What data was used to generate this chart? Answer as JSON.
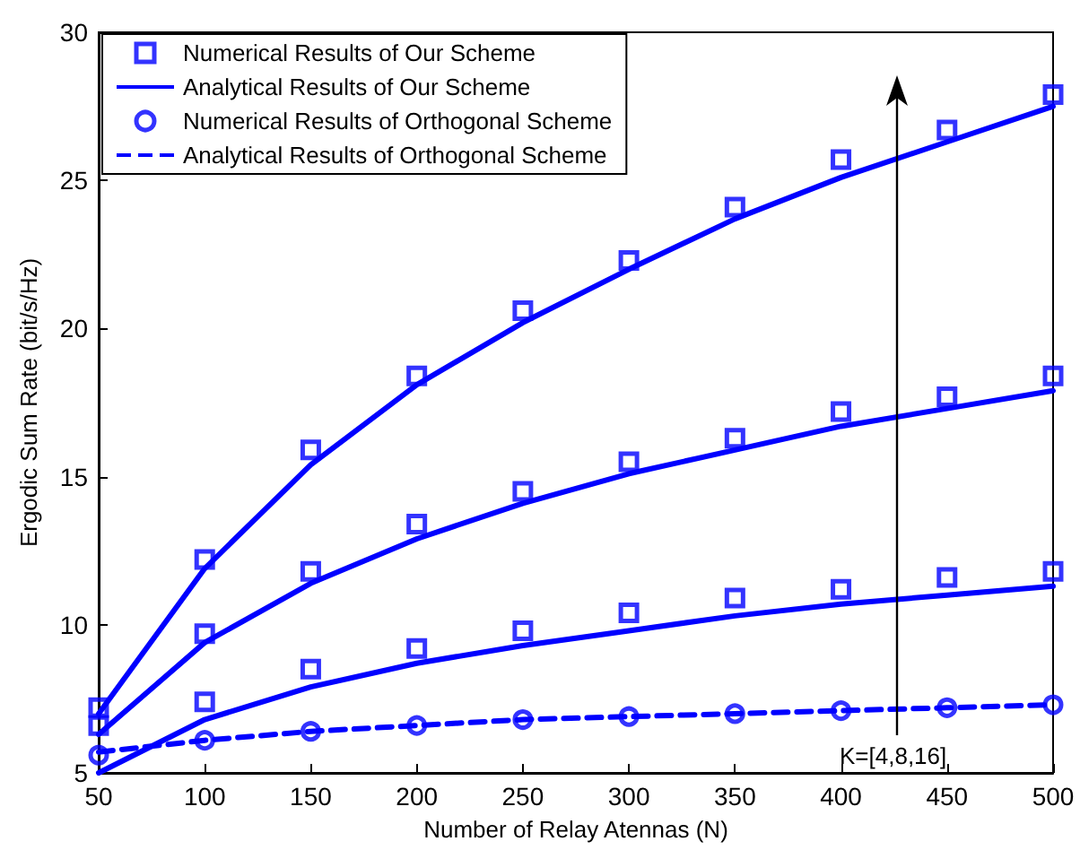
{
  "chart_data": {
    "type": "line",
    "xlabel": "Number of Relay Atennas (N)",
    "ylabel": "Ergodic Sum Rate (bit/s/Hz)",
    "x": [
      50,
      100,
      150,
      200,
      250,
      300,
      350,
      400,
      450,
      500
    ],
    "xlim": [
      50,
      500
    ],
    "xticks": [
      50,
      100,
      150,
      200,
      250,
      300,
      350,
      400,
      450,
      500
    ],
    "ylim": [
      5,
      30
    ],
    "yticks": [
      5,
      10,
      15,
      20,
      25,
      30
    ],
    "grid": false,
    "legend": "top left",
    "annotations": [
      "K=[4,8,16]"
    ],
    "series": [
      {
        "name": "Numerical Results of Our Scheme",
        "type": "scatter",
        "marker": "square",
        "color": "#0000ff",
        "values": [
          7.2,
          12.2,
          15.9,
          18.4,
          20.6,
          22.3,
          24.1,
          25.7,
          26.7,
          27.9
        ]
      },
      {
        "name": "Analytical Results of Our Scheme",
        "marker": "none",
        "line_style": "solid",
        "color": "#0000ff",
        "values": [
          7.0,
          11.9,
          15.4,
          18.1,
          20.2,
          22.0,
          23.7,
          25.1,
          26.3,
          27.5
        ]
      },
      {
        "type": "scatter",
        "marker": "square",
        "color": "#0000ff",
        "values": [
          6.6,
          9.7,
          11.8,
          13.4,
          14.5,
          15.5,
          16.3,
          17.2,
          17.7,
          18.4
        ]
      },
      {
        "marker": "none",
        "line_style": "solid",
        "color": "#0000ff",
        "values": [
          6.3,
          9.4,
          11.4,
          12.9,
          14.1,
          15.1,
          15.9,
          16.7,
          17.3,
          17.9
        ]
      },
      {
        "type": "scatter",
        "marker": "square",
        "color": "#0000ff",
        "values": [
          null,
          7.4,
          8.5,
          9.2,
          9.8,
          10.4,
          10.9,
          11.2,
          11.6,
          11.8
        ]
      },
      {
        "marker": "none",
        "line_style": "solid",
        "color": "#0000ff",
        "values": [
          5.0,
          6.8,
          7.9,
          8.7,
          9.3,
          9.8,
          10.3,
          10.7,
          11.0,
          11.3
        ]
      },
      {
        "name": "Numerical Results of Orthogonal Scheme",
        "type": "scatter",
        "marker": "circle",
        "color": "#0000ff",
        "values": [
          5.6,
          6.1,
          6.4,
          6.6,
          6.8,
          6.9,
          7.0,
          7.1,
          7.2,
          7.3
        ]
      },
      {
        "name": "Analytical Results of Orthogonal Scheme",
        "marker": "none",
        "line_style": "dashed",
        "color": "#0000ff",
        "values": [
          5.7,
          6.1,
          6.4,
          6.6,
          6.8,
          6.9,
          7.0,
          7.1,
          7.2,
          7.3
        ]
      }
    ]
  }
}
